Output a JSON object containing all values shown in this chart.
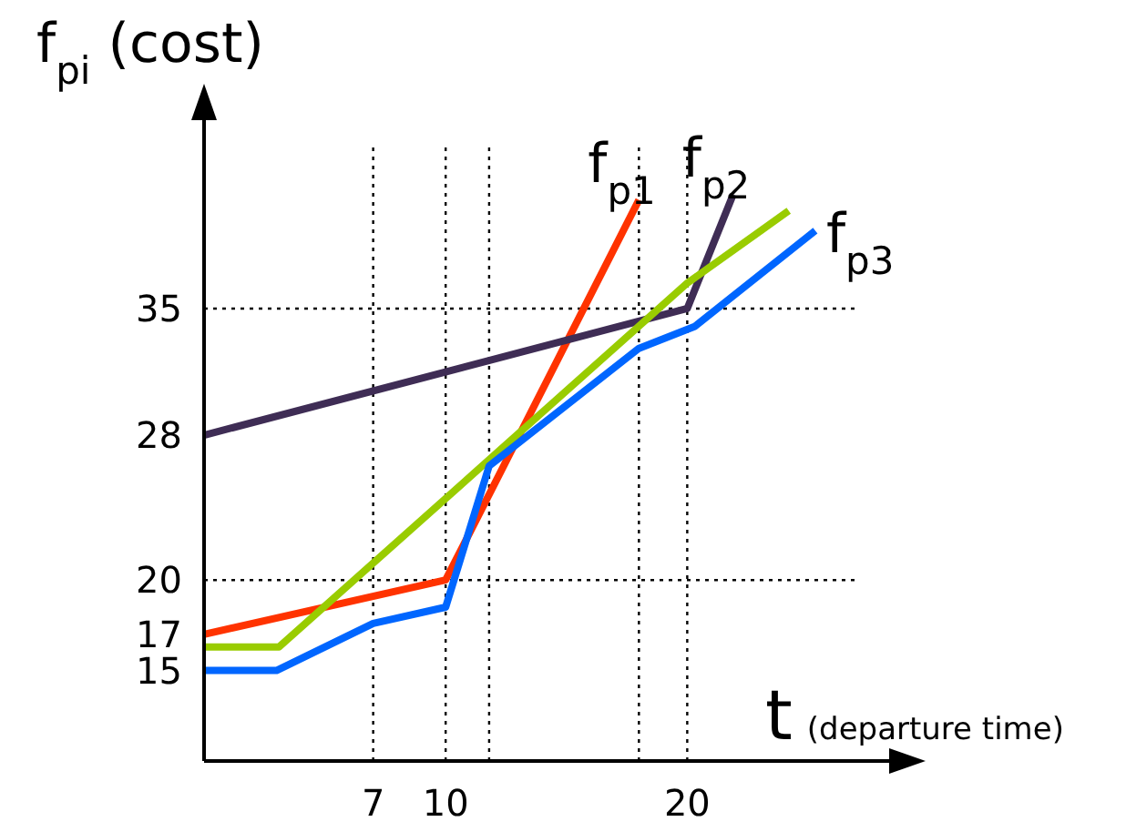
{
  "chart_data": {
    "type": "line",
    "ylabel": "f$_{pi}$ (cost)",
    "xlabel": "t (departure time)",
    "xlim": [
      0,
      27
    ],
    "xticks": [
      7,
      10,
      20
    ],
    "ylim": [
      10,
      44
    ],
    "yticks": [
      15,
      17,
      20,
      28,
      35
    ],
    "line_style": "solid",
    "marker": "none",
    "grid": false,
    "ref_lines": [
      {
        "axis": "y",
        "value": 35,
        "color": "#000000",
        "line_style": "dotted"
      },
      {
        "axis": "y",
        "value": 20,
        "color": "#000000",
        "line_style": "dotted"
      },
      {
        "axis": "x",
        "value": 7,
        "color": "#000000",
        "line_style": "dotted"
      },
      {
        "axis": "x",
        "value": 10,
        "color": "#000000",
        "line_style": "dotted"
      },
      {
        "axis": "x",
        "value": 11.8,
        "color": "#000000",
        "line_style": "dotted"
      },
      {
        "axis": "x",
        "value": 18,
        "color": "#000000",
        "line_style": "dotted"
      },
      {
        "axis": "x",
        "value": 20,
        "color": "#000000",
        "line_style": "dotted"
      }
    ],
    "series": [
      {
        "name": "f$_{p1}$",
        "color": "#ff3300",
        "x": [
          0,
          10,
          18
        ],
        "values": [
          17,
          20,
          41
        ]
      },
      {
        "name": "f$_{p2}$",
        "color": "#3f2d55",
        "x": [
          0,
          20,
          21.9
        ],
        "values": [
          28,
          35,
          41.3
        ]
      },
      {
        "color": "#99cc00",
        "x": [
          0,
          3.1,
          20,
          24.2
        ],
        "values": [
          16.3,
          16.3,
          36.4,
          40.4
        ]
      },
      {
        "name": "f$_{p3}$",
        "color": "#0066ff",
        "x": [
          0,
          3,
          7,
          10,
          11.8,
          18,
          20.3,
          25.3
        ],
        "values": [
          15,
          15,
          17.6,
          18.5,
          26.3,
          32.8,
          34,
          39.3
        ]
      }
    ]
  }
}
